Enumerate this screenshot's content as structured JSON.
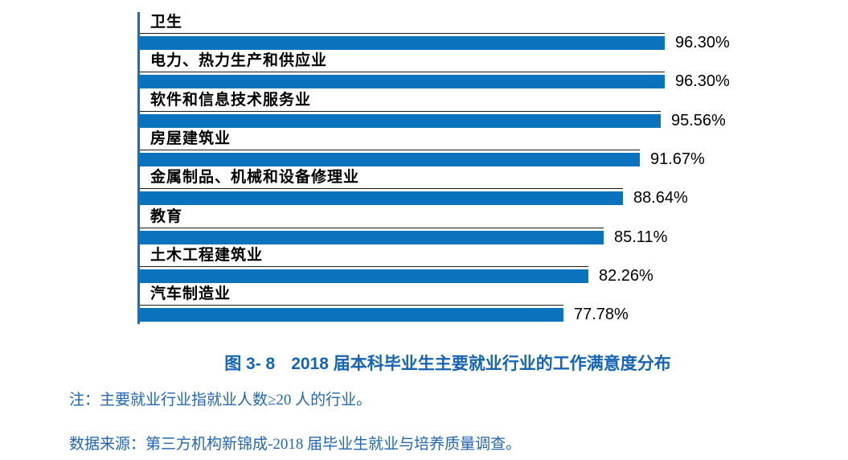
{
  "chart_data": {
    "type": "bar",
    "orientation": "horizontal",
    "categories": [
      "卫生",
      "电力、热力生产和供应业",
      "软件和信息技术服务业",
      "房屋建筑业",
      "金属制品、机械和设备修理业",
      "教育",
      "土木工程建筑业",
      "汽车制造业"
    ],
    "values": [
      96.3,
      96.3,
      95.56,
      91.67,
      88.64,
      85.11,
      82.26,
      77.78
    ],
    "value_labels": [
      "96.30%",
      "96.30%",
      "95.56%",
      "91.67%",
      "88.64%",
      "85.11%",
      "82.26%",
      "77.78%"
    ],
    "xlim": [
      0,
      100
    ],
    "grid": false,
    "legend": false,
    "bar_color": "#0b72bd",
    "axis_color": "#0b72bd",
    "value_label_color": "#000000",
    "category_label_color": "#000000"
  },
  "caption": {
    "figure_label": "图 3- 8",
    "title": "2018 届本科毕业生主要就业行业的工作满意度分布",
    "color": "#1464b3"
  },
  "notes": {
    "note": "注：主要就业行业指就业人数≥20 人的行业。",
    "source": "数据来源：第三方机构新锦成-2018 届毕业生就业与培养质量调查。",
    "color": "#2166b2"
  }
}
